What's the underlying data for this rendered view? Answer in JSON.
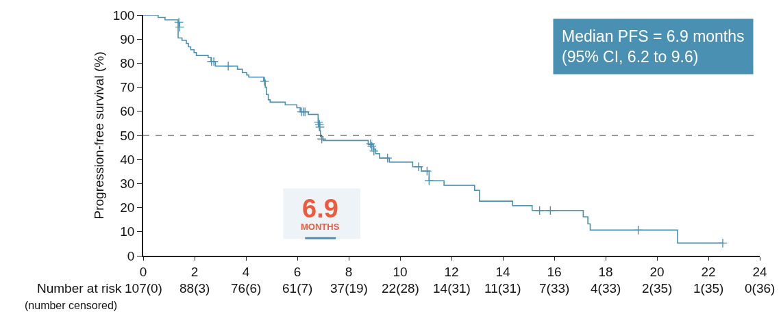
{
  "chart_data": {
    "type": "step",
    "ylabel": "Progression-free survival (%)",
    "series": [
      {
        "color": "#4a90b2",
        "x": [
          0,
          0.58,
          0.85,
          1.36,
          1.51,
          1.68,
          1.76,
          1.85,
          1.98,
          2.07,
          2.53,
          2.64,
          2.81,
          3.67,
          3.86,
          4.03,
          4.11,
          4.69,
          4.75,
          4.8,
          4.87,
          4.94,
          5.53,
          5.98,
          6.11,
          6.43,
          6.81,
          6.86,
          6.9,
          7.0,
          8.76,
          8.96,
          9.05,
          9.2,
          9.58,
          10.49,
          10.83,
          11.13,
          11.71,
          12.9,
          13.09,
          14.38,
          15.14,
          17.13,
          17.31,
          17.4,
          20.8,
          22.56
        ],
        "values": [
          100,
          99,
          98,
          90.5,
          89.5,
          88.2,
          86.8,
          85.6,
          84.4,
          83.2,
          82.4,
          80.7,
          78.8,
          77.5,
          76.1,
          75.1,
          74.2,
          72.9,
          70,
          67,
          64.8,
          63.8,
          62.7,
          61.5,
          59.8,
          58.7,
          55,
          52,
          49.5,
          47.9,
          46.2,
          44.3,
          42.4,
          40.6,
          38.9,
          37.0,
          35.2,
          31.2,
          29.3,
          27.2,
          22.7,
          20.8,
          18.8,
          16.2,
          13.3,
          10.7,
          5.3,
          5.3
        ]
      },
      {
        "type": "scatter",
        "color": "#4a90b2",
        "marker": "cross",
        "x": [
          1.39,
          1.42,
          2.66,
          2.75,
          3.31,
          4.72,
          6.16,
          6.24,
          6.3,
          6.82,
          6.86,
          6.88,
          6.95,
          8.85,
          8.9,
          8.98,
          9.51,
          10.72,
          11.05,
          11.13,
          15.43,
          15.85,
          19.27,
          22.56
        ],
        "values": [
          97,
          95,
          80.7,
          80.7,
          78.8,
          72.5,
          59.8,
          59.8,
          59.8,
          55.5,
          54.5,
          53.5,
          48.5,
          46.5,
          45.5,
          43.5,
          40.6,
          37.0,
          35.2,
          31.2,
          18.8,
          18.8,
          10.7,
          5.3
        ]
      }
    ],
    "xlim": [
      0,
      24
    ],
    "xticks": [
      0,
      2,
      4,
      6,
      8,
      10,
      12,
      14,
      16,
      18,
      20,
      22,
      24
    ],
    "ylim": [
      0,
      100
    ],
    "yticks": [
      0,
      10,
      20,
      30,
      40,
      50,
      60,
      70,
      80,
      90,
      100
    ],
    "ref_lines": [
      {
        "axis": "y",
        "value": 50,
        "color": "#333333",
        "line_style": "dashed"
      }
    ],
    "grid": false,
    "annotations": [
      "Median PFS = 6.9 months\n(95% CI, 6.2 to 9.6)",
      "6.9",
      "MONTHS",
      "Number at risk",
      "(number censored)",
      "107(0)",
      "88(3)",
      "76(6)",
      "61(7)",
      "37(19)",
      "22(28)",
      "14(31)",
      "11(31)",
      "7(33)",
      "4(33)",
      "2(35)",
      "1(35)",
      "0(36)"
    ]
  }
}
